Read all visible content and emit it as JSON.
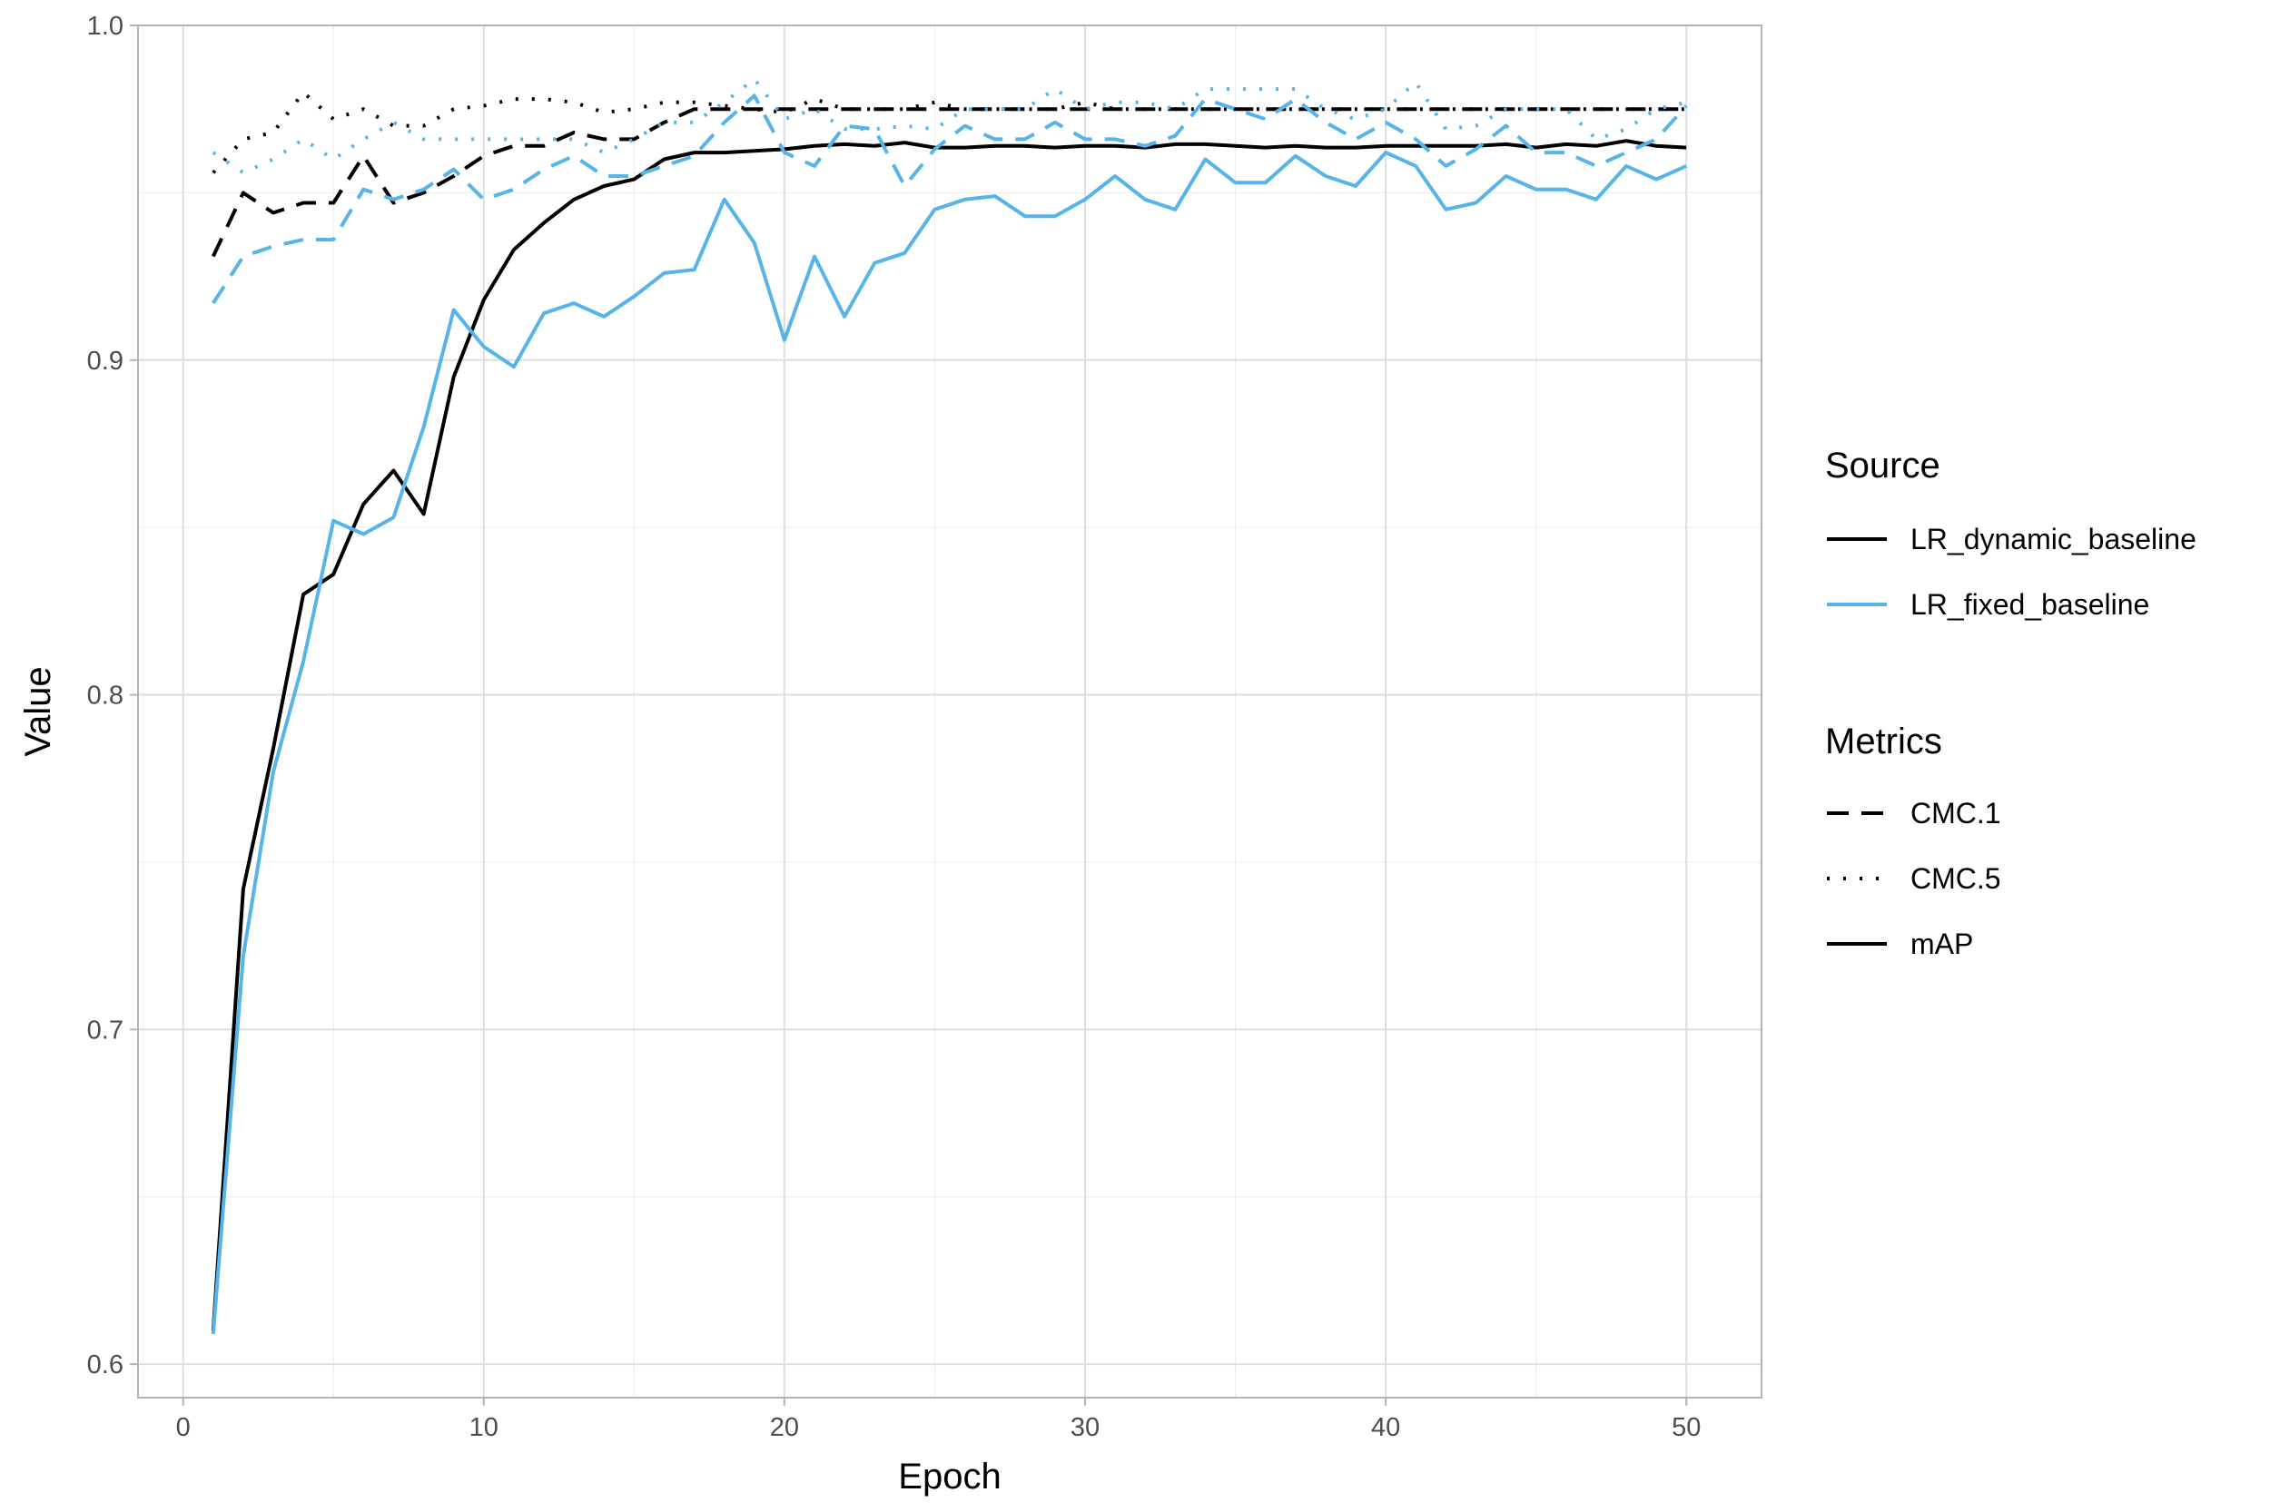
{
  "chart_data": {
    "type": "line",
    "xlabel": "Epoch",
    "ylabel": "Value",
    "xlim": [
      -1.5,
      52.5
    ],
    "ylim": [
      0.59,
      1.0
    ],
    "x_ticks": [
      0,
      10,
      20,
      30,
      40,
      50
    ],
    "y_ticks": [
      0.6,
      0.7,
      0.8,
      0.9,
      1.0
    ],
    "x_tick_labels": [
      "0",
      "10",
      "20",
      "30",
      "40",
      "50"
    ],
    "y_tick_labels": [
      "0.6",
      "0.7",
      "0.8",
      "0.9",
      "1.0"
    ],
    "grid": true,
    "legend_position": "right",
    "x": [
      1,
      2,
      3,
      4,
      5,
      6,
      7,
      8,
      9,
      10,
      11,
      12,
      13,
      14,
      15,
      16,
      17,
      18,
      19,
      20,
      21,
      22,
      23,
      24,
      25,
      26,
      27,
      28,
      29,
      30,
      31,
      32,
      33,
      34,
      35,
      36,
      37,
      38,
      39,
      40,
      41,
      42,
      43,
      44,
      45,
      46,
      47,
      48,
      49,
      50
    ],
    "source_legend": {
      "title": "Source",
      "items": [
        {
          "label": "LR_dynamic_baseline",
          "color": "#000000"
        },
        {
          "label": "LR_fixed_baseline",
          "color": "#56B4E9"
        }
      ]
    },
    "metrics_legend": {
      "title": "Metrics",
      "items": [
        {
          "label": "CMC.1",
          "dash": "dashed"
        },
        {
          "label": "CMC.5",
          "dash": "dotted"
        },
        {
          "label": "mAP",
          "dash": "solid"
        }
      ]
    },
    "series": [
      {
        "source": "LR_dynamic_baseline",
        "metric": "mAP",
        "color": "#000000",
        "dash": "solid",
        "values": [
          0.61,
          0.742,
          0.784,
          0.83,
          0.836,
          0.857,
          0.867,
          0.854,
          0.895,
          0.918,
          0.933,
          0.941,
          0.948,
          0.952,
          0.954,
          0.96,
          0.962,
          0.962,
          0.9625,
          0.963,
          0.964,
          0.9645,
          0.964,
          0.965,
          0.9635,
          0.9635,
          0.964,
          0.964,
          0.9635,
          0.964,
          0.964,
          0.9635,
          0.9645,
          0.9645,
          0.964,
          0.9635,
          0.964,
          0.9635,
          0.9635,
          0.964,
          0.964,
          0.964,
          0.964,
          0.9645,
          0.9635,
          0.9645,
          0.964,
          0.9655,
          0.964,
          0.9635
        ]
      },
      {
        "source": "LR_dynamic_baseline",
        "metric": "CMC.1",
        "color": "#000000",
        "dash": "dashed",
        "values": [
          0.931,
          0.95,
          0.944,
          0.947,
          0.947,
          0.961,
          0.947,
          0.95,
          0.955,
          0.961,
          0.964,
          0.964,
          0.968,
          0.966,
          0.966,
          0.971,
          0.975,
          0.975,
          0.975,
          0.975,
          0.975,
          0.975,
          0.975,
          0.975,
          0.975,
          0.975,
          0.975,
          0.975,
          0.975,
          0.975,
          0.975,
          0.975,
          0.975,
          0.975,
          0.975,
          0.975,
          0.975,
          0.975,
          0.975,
          0.975,
          0.975,
          0.975,
          0.975,
          0.975,
          0.975,
          0.975,
          0.975,
          0.975,
          0.975,
          0.975
        ]
      },
      {
        "source": "LR_dynamic_baseline",
        "metric": "CMC.5",
        "color": "#000000",
        "dash": "dotted",
        "values": [
          0.956,
          0.966,
          0.968,
          0.98,
          0.972,
          0.975,
          0.97,
          0.97,
          0.975,
          0.976,
          0.978,
          0.978,
          0.977,
          0.974,
          0.975,
          0.977,
          0.977,
          0.976,
          0.975,
          0.974,
          0.978,
          0.975,
          0.975,
          0.975,
          0.977,
          0.975,
          0.975,
          0.975,
          0.975,
          0.977,
          0.975,
          0.975,
          0.975,
          0.975,
          0.975,
          0.975,
          0.975,
          0.975,
          0.975,
          0.975,
          0.975,
          0.975,
          0.975,
          0.975,
          0.975,
          0.975,
          0.975,
          0.975,
          0.975,
          0.975
        ]
      },
      {
        "source": "LR_fixed_baseline",
        "metric": "mAP",
        "color": "#56B4E9",
        "dash": "solid",
        "values": [
          0.609,
          0.722,
          0.777,
          0.81,
          0.852,
          0.848,
          0.853,
          0.88,
          0.915,
          0.904,
          0.898,
          0.914,
          0.917,
          0.913,
          0.919,
          0.926,
          0.927,
          0.948,
          0.935,
          0.906,
          0.931,
          0.913,
          0.929,
          0.932,
          0.945,
          0.948,
          0.949,
          0.943,
          0.943,
          0.948,
          0.955,
          0.948,
          0.945,
          0.96,
          0.953,
          0.953,
          0.961,
          0.955,
          0.952,
          0.962,
          0.958,
          0.945,
          0.947,
          0.955,
          0.951,
          0.951,
          0.948,
          0.958,
          0.954,
          0.958
        ]
      },
      {
        "source": "LR_fixed_baseline",
        "metric": "CMC.1",
        "color": "#56B4E9",
        "dash": "dashed",
        "values": [
          0.917,
          0.931,
          0.934,
          0.936,
          0.936,
          0.951,
          0.948,
          0.951,
          0.957,
          0.948,
          0.951,
          0.957,
          0.961,
          0.955,
          0.955,
          0.958,
          0.961,
          0.971,
          0.979,
          0.962,
          0.958,
          0.97,
          0.969,
          0.952,
          0.963,
          0.97,
          0.966,
          0.966,
          0.971,
          0.966,
          0.966,
          0.964,
          0.967,
          0.978,
          0.975,
          0.972,
          0.978,
          0.971,
          0.966,
          0.971,
          0.966,
          0.958,
          0.963,
          0.97,
          0.962,
          0.962,
          0.958,
          0.962,
          0.966,
          0.976
        ]
      },
      {
        "source": "LR_fixed_baseline",
        "metric": "CMC.5",
        "color": "#56B4E9",
        "dash": "dotted",
        "values": [
          0.962,
          0.956,
          0.96,
          0.966,
          0.96,
          0.966,
          0.971,
          0.966,
          0.966,
          0.966,
          0.966,
          0.966,
          0.966,
          0.962,
          0.966,
          0.971,
          0.971,
          0.977,
          0.984,
          0.972,
          0.975,
          0.969,
          0.969,
          0.97,
          0.969,
          0.975,
          0.975,
          0.975,
          0.981,
          0.975,
          0.977,
          0.977,
          0.975,
          0.981,
          0.981,
          0.981,
          0.981,
          0.975,
          0.972,
          0.975,
          0.983,
          0.969,
          0.97,
          0.975,
          0.975,
          0.975,
          0.966,
          0.969,
          0.975,
          0.977
        ]
      }
    ]
  }
}
